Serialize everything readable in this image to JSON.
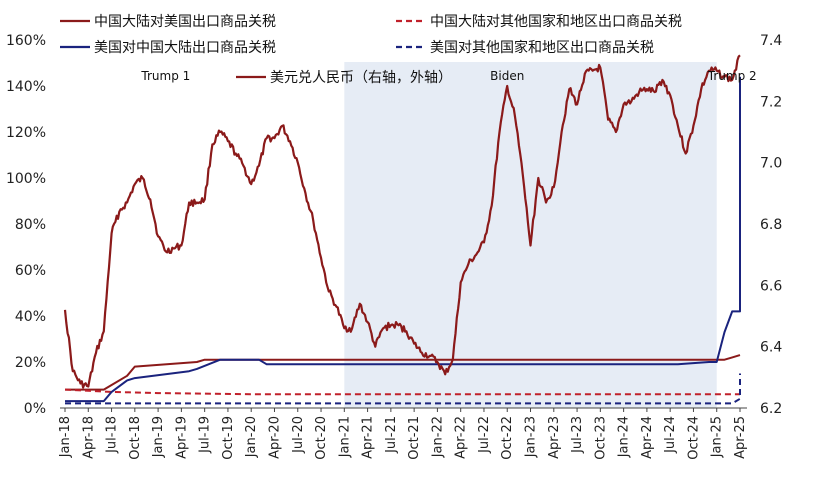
{
  "chart_data": {
    "type": "line",
    "title": "",
    "x_range": [
      "2018-01",
      "2025-04"
    ],
    "left_axis": {
      "min": 0,
      "max": 160,
      "unit": "%",
      "ticks": [
        "0%",
        "20%",
        "40%",
        "60%",
        "80%",
        "100%",
        "120%",
        "140%",
        "160%"
      ]
    },
    "right_axis": {
      "min": 6.2,
      "max": 7.4,
      "ticks": [
        "6.2",
        "6.4",
        "6.6",
        "6.8",
        "7.0",
        "7.2",
        "7.4"
      ]
    },
    "x_tick_labels": [
      "Jan-18",
      "Apr-18",
      "Jul-18",
      "Oct-18",
      "Jan-19",
      "Apr-19",
      "Jul-19",
      "Oct-19",
      "Jan-20",
      "Apr-20",
      "Jul-20",
      "Oct-20",
      "Jan-21",
      "Apr-21",
      "Jul-21",
      "Oct-21",
      "Jan-22",
      "Apr-22",
      "Jul-22",
      "Oct-22",
      "Jan-23",
      "Apr-23",
      "Jul-23",
      "Oct-23",
      "Jan-24",
      "Apr-24",
      "Jul-24",
      "Oct-24",
      "Jan-25",
      "Apr-25"
    ],
    "shaded_period": {
      "label": "Biden",
      "start": "2021-01",
      "end": "2025-01",
      "color": "#e6ecf5"
    },
    "annotations": [
      {
        "text": "Trump 1",
        "x": "2019-02"
      },
      {
        "text": "Biden",
        "x": "2022-10"
      },
      {
        "text": "Trump 2",
        "x": "2025-03"
      }
    ],
    "legend": [
      {
        "name": "中国大陆对美国出口商品关税",
        "color": "#8b1a1a",
        "dash": false,
        "width": 2
      },
      {
        "name": "中国大陆对其他国家和地区出口商品关税",
        "color": "#c0202a",
        "dash": true,
        "width": 2
      },
      {
        "name": "美国对中国大陆出口商品关税",
        "color": "#1a237e",
        "dash": false,
        "width": 2
      },
      {
        "name": "美国对其他国家和地区出口商品关税",
        "color": "#1a237e",
        "dash": true,
        "width": 2
      },
      {
        "name": "美元兑人民币（右轴，外轴）",
        "color": "#8b1a1a",
        "dash": false,
        "width": 2
      }
    ],
    "series": [
      {
        "name": "中国大陆对美国出口商品关税",
        "axis": "left",
        "color": "#8b1a1a",
        "dash": false,
        "points": [
          [
            "2018-01",
            8
          ],
          [
            "2018-06",
            8
          ],
          [
            "2018-07",
            10
          ],
          [
            "2018-09",
            14
          ],
          [
            "2018-10",
            18
          ],
          [
            "2019-06",
            20
          ],
          [
            "2019-07",
            21
          ],
          [
            "2020-02",
            21
          ],
          [
            "2020-03",
            21
          ],
          [
            "2025-02",
            21
          ],
          [
            "2025-03",
            22
          ],
          [
            "2025-04",
            23
          ]
        ]
      },
      {
        "name": "中国大陆对其他国家和地区出口商品关税",
        "axis": "left",
        "color": "#c0202a",
        "dash": true,
        "points": [
          [
            "2018-01",
            8
          ],
          [
            "2018-07",
            7
          ],
          [
            "2019-01",
            6.5
          ],
          [
            "2020-01",
            6
          ],
          [
            "2025-04",
            6
          ]
        ]
      },
      {
        "name": "美国对中国大陆出口商品关税",
        "axis": "left",
        "color": "#1a237e",
        "dash": false,
        "points": [
          [
            "2018-01",
            3
          ],
          [
            "2018-06",
            3
          ],
          [
            "2018-07",
            7
          ],
          [
            "2018-09",
            12
          ],
          [
            "2018-10",
            13
          ],
          [
            "2019-05",
            16
          ],
          [
            "2019-06",
            17
          ],
          [
            "2019-09",
            21
          ],
          [
            "2020-02",
            21
          ],
          [
            "2020-03",
            19
          ],
          [
            "2024-08",
            19
          ],
          [
            "2024-12",
            20
          ],
          [
            "2025-01",
            20
          ],
          [
            "2025-02",
            33
          ],
          [
            "2025-03",
            42
          ],
          [
            "2025-04",
            42
          ],
          [
            "2025-04",
            144
          ]
        ]
      },
      {
        "name": "美国对其他国家和地区出口商品关税",
        "axis": "left",
        "color": "#1a237e",
        "dash": true,
        "points": [
          [
            "2018-01",
            2
          ],
          [
            "2019-01",
            2
          ],
          [
            "2025-03",
            2
          ],
          [
            "2025-04",
            4
          ],
          [
            "2025-04",
            15
          ]
        ]
      },
      {
        "name": "美元兑人民币（右轴，外轴）",
        "axis": "right",
        "color": "#8b1a1a",
        "dash": false,
        "points": [
          [
            "2018-01",
            6.52
          ],
          [
            "2018-02",
            6.32
          ],
          [
            "2018-03",
            6.28
          ],
          [
            "2018-04",
            6.27
          ],
          [
            "2018-05",
            6.38
          ],
          [
            "2018-06",
            6.45
          ],
          [
            "2018-07",
            6.77
          ],
          [
            "2018-08",
            6.84
          ],
          [
            "2018-09",
            6.87
          ],
          [
            "2018-10",
            6.93
          ],
          [
            "2018-11",
            6.95
          ],
          [
            "2018-12",
            6.88
          ],
          [
            "2019-01",
            6.76
          ],
          [
            "2019-02",
            6.71
          ],
          [
            "2019-03",
            6.72
          ],
          [
            "2019-04",
            6.73
          ],
          [
            "2019-05",
            6.87
          ],
          [
            "2019-06",
            6.87
          ],
          [
            "2019-07",
            6.88
          ],
          [
            "2019-08",
            7.06
          ],
          [
            "2019-09",
            7.1
          ],
          [
            "2019-10",
            7.07
          ],
          [
            "2019-11",
            7.03
          ],
          [
            "2019-12",
            6.99
          ],
          [
            "2020-01",
            6.93
          ],
          [
            "2020-02",
            6.99
          ],
          [
            "2020-03",
            7.08
          ],
          [
            "2020-04",
            7.08
          ],
          [
            "2020-05",
            7.12
          ],
          [
            "2020-06",
            7.07
          ],
          [
            "2020-07",
            7.0
          ],
          [
            "2020-08",
            6.9
          ],
          [
            "2020-09",
            6.81
          ],
          [
            "2020-10",
            6.69
          ],
          [
            "2020-11",
            6.58
          ],
          [
            "2020-12",
            6.53
          ],
          [
            "2021-01",
            6.46
          ],
          [
            "2021-02",
            6.46
          ],
          [
            "2021-03",
            6.54
          ],
          [
            "2021-04",
            6.48
          ],
          [
            "2021-05",
            6.4
          ],
          [
            "2021-06",
            6.46
          ],
          [
            "2021-07",
            6.47
          ],
          [
            "2021-08",
            6.47
          ],
          [
            "2021-09",
            6.45
          ],
          [
            "2021-10",
            6.41
          ],
          [
            "2021-11",
            6.38
          ],
          [
            "2021-12",
            6.37
          ],
          [
            "2022-01",
            6.35
          ],
          [
            "2022-02",
            6.31
          ],
          [
            "2022-03",
            6.36
          ],
          [
            "2022-04",
            6.61
          ],
          [
            "2022-05",
            6.67
          ],
          [
            "2022-06",
            6.7
          ],
          [
            "2022-07",
            6.74
          ],
          [
            "2022-08",
            6.86
          ],
          [
            "2022-09",
            7.1
          ],
          [
            "2022-10",
            7.25
          ],
          [
            "2022-11",
            7.15
          ],
          [
            "2022-12",
            6.96
          ],
          [
            "2023-01",
            6.73
          ],
          [
            "2023-02",
            6.95
          ],
          [
            "2023-03",
            6.87
          ],
          [
            "2023-04",
            6.92
          ],
          [
            "2023-05",
            7.1
          ],
          [
            "2023-06",
            7.24
          ],
          [
            "2023-07",
            7.19
          ],
          [
            "2023-08",
            7.29
          ],
          [
            "2023-09",
            7.3
          ],
          [
            "2023-10",
            7.31
          ],
          [
            "2023-11",
            7.14
          ],
          [
            "2023-12",
            7.1
          ],
          [
            "2024-01",
            7.19
          ],
          [
            "2024-02",
            7.2
          ],
          [
            "2024-03",
            7.23
          ],
          [
            "2024-04",
            7.24
          ],
          [
            "2024-05",
            7.23
          ],
          [
            "2024-06",
            7.27
          ],
          [
            "2024-07",
            7.22
          ],
          [
            "2024-08",
            7.12
          ],
          [
            "2024-09",
            7.03
          ],
          [
            "2024-10",
            7.12
          ],
          [
            "2024-11",
            7.24
          ],
          [
            "2024-12",
            7.3
          ],
          [
            "2025-01",
            7.3
          ],
          [
            "2025-02",
            7.28
          ],
          [
            "2025-03",
            7.27
          ],
          [
            "2025-04",
            7.35
          ]
        ]
      }
    ]
  }
}
